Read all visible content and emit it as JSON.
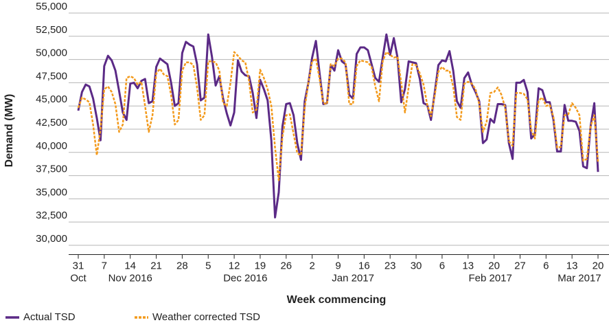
{
  "chart_data": {
    "type": "line",
    "y_label": "Demand (MW)",
    "x_label": "Week commencing",
    "ylim": [
      29000,
      55000
    ],
    "yticks": [
      {
        "value": 30000,
        "label": "30,000"
      },
      {
        "value": 32500,
        "label": "32,500"
      },
      {
        "value": 35000,
        "label": "35,000"
      },
      {
        "value": 37500,
        "label": "37,500"
      },
      {
        "value": 40000,
        "label": "40,000"
      },
      {
        "value": 42500,
        "label": "42,500"
      },
      {
        "value": 45000,
        "label": "45,000"
      },
      {
        "value": 47500,
        "label": "47,500"
      },
      {
        "value": 50000,
        "label": "50,000"
      },
      {
        "value": 52500,
        "label": "52,500"
      },
      {
        "value": 55000,
        "label": "55,000"
      }
    ],
    "grid": true,
    "categories": [
      "31",
      null,
      null,
      null,
      null,
      null,
      null,
      "7",
      null,
      null,
      null,
      null,
      null,
      null,
      "14",
      null,
      null,
      null,
      null,
      null,
      null,
      "21",
      null,
      null,
      null,
      null,
      null,
      null,
      "28",
      null,
      null,
      null,
      null,
      null,
      null,
      "5",
      null,
      null,
      null,
      null,
      null,
      null,
      "12",
      null,
      null,
      null,
      null,
      null,
      null,
      "19",
      null,
      null,
      null,
      null,
      null,
      null,
      "26",
      null,
      null,
      null,
      null,
      null,
      null,
      "2",
      null,
      null,
      null,
      null,
      null,
      null,
      "9",
      null,
      null,
      null,
      null,
      null,
      null,
      "16",
      null,
      null,
      null,
      null,
      null,
      null,
      "23",
      null,
      null,
      null,
      null,
      null,
      null,
      "30",
      null,
      null,
      null,
      null,
      null,
      null,
      "6",
      null,
      null,
      null,
      null,
      null,
      null,
      "13",
      null,
      null,
      null,
      null,
      null,
      null,
      "20",
      null,
      null,
      null,
      null,
      null,
      null,
      "27",
      null,
      null,
      null,
      null,
      null,
      null,
      "6",
      null,
      null,
      null,
      null,
      null,
      null,
      "13",
      null,
      null,
      null,
      null,
      null,
      null,
      "20"
    ],
    "month_labels": [
      "Oct",
      null,
      null,
      null,
      null,
      null,
      null,
      null,
      null,
      null,
      null,
      null,
      null,
      null,
      "Nov 2016",
      null,
      null,
      null,
      null,
      null,
      null,
      null,
      null,
      null,
      null,
      null,
      null,
      null,
      null,
      null,
      null,
      null,
      null,
      null,
      null,
      null,
      null,
      null,
      null,
      null,
      null,
      null,
      null,
      null,
      null,
      "Dec 2016",
      null,
      null,
      null,
      null,
      null,
      null,
      null,
      null,
      null,
      null,
      null,
      null,
      null,
      null,
      null,
      null,
      null,
      null,
      null,
      null,
      null,
      null,
      null,
      null,
      null,
      null,
      null,
      null,
      "Jan 2017",
      null,
      null,
      null,
      null,
      null,
      null,
      null,
      null,
      null,
      null,
      null,
      null,
      null,
      null,
      null,
      null,
      null,
      null,
      null,
      null,
      null,
      null,
      null,
      null,
      null,
      null,
      null,
      null,
      null,
      null,
      null,
      null,
      null,
      null,
      null,
      null,
      "Feb 2017",
      null,
      null,
      null,
      null,
      null,
      null,
      null,
      null,
      null,
      null,
      null,
      null,
      null,
      null,
      null,
      null,
      null,
      null,
      null,
      null,
      null,
      null,
      null,
      "Mar 2017",
      null,
      null,
      null,
      null,
      null,
      null
    ],
    "series": [
      {
        "name": "Actual TSD",
        "color": "#5b2a86",
        "style": "solid",
        "values": [
          44500,
          46500,
          47300,
          47100,
          45800,
          43700,
          41300,
          49300,
          50400,
          49900,
          48800,
          46600,
          44300,
          43500,
          47400,
          47500,
          46900,
          47700,
          47900,
          45300,
          45500,
          49200,
          50100,
          49800,
          49500,
          47500,
          45000,
          45300,
          50700,
          51900,
          51600,
          51400,
          49500,
          45600,
          45900,
          52700,
          50300,
          47200,
          48200,
          45800,
          44200,
          42900,
          44300,
          49900,
          48700,
          48300,
          48200,
          46400,
          43700,
          47800,
          46800,
          45600,
          41300,
          33000,
          35700,
          42800,
          45200,
          45300,
          44000,
          41000,
          39200,
          45500,
          47500,
          50200,
          52000,
          48500,
          45200,
          45300,
          49400,
          48800,
          51000,
          49800,
          49500,
          46200,
          45800,
          50600,
          51300,
          51300,
          51000,
          49500,
          48000,
          47600,
          50200,
          52700,
          50500,
          52300,
          50200,
          45400,
          46800,
          49800,
          49700,
          49600,
          47900,
          45300,
          45100,
          43500,
          46400,
          49400,
          49900,
          49800,
          50900,
          48800,
          45500,
          44800,
          48000,
          48600,
          47300,
          46500,
          45500,
          41000,
          41400,
          43600,
          43200,
          45200,
          45200,
          45100,
          41000,
          39300,
          47500,
          47500,
          47800,
          46500,
          41500,
          42000,
          46900,
          46700,
          45400,
          45400,
          43500,
          40100,
          40100,
          45100,
          43400,
          43400,
          43300,
          42300,
          38500,
          38300,
          42800,
          45300,
          37900
        ]
      },
      {
        "name": "Weather corrected TSD",
        "color": "#f39a1c",
        "style": "dashed",
        "values": [
          44800,
          45900,
          45700,
          45400,
          43000,
          39700,
          42500,
          46800,
          47100,
          46500,
          45200,
          42200,
          43000,
          48000,
          48200,
          48000,
          47300,
          47600,
          45000,
          42200,
          44000,
          48500,
          49000,
          48400,
          48200,
          46200,
          43000,
          43500,
          48800,
          49700,
          49700,
          49400,
          47000,
          43500,
          44000,
          49800,
          49800,
          49700,
          48800,
          45300,
          45000,
          47500,
          50800,
          50400,
          49900,
          49700,
          47700,
          44300,
          44600,
          48900,
          48000,
          46800,
          45000,
          40500,
          37000,
          41700,
          44000,
          44100,
          42000,
          39900,
          39700,
          44800,
          47500,
          49800,
          50100,
          47900,
          45300,
          45200,
          49500,
          49300,
          50100,
          50100,
          49700,
          45200,
          45200,
          49300,
          49900,
          49800,
          49700,
          49200,
          47100,
          45500,
          49800,
          50800,
          50500,
          50200,
          50300,
          47500,
          44300,
          47000,
          49500,
          49400,
          48500,
          47300,
          45100,
          43900,
          46100,
          48700,
          49200,
          48800,
          48800,
          47100,
          43800,
          43500,
          47400,
          47600,
          47400,
          46800,
          45200,
          42200,
          43300,
          46400,
          46500,
          47000,
          46200,
          44800,
          41200,
          40700,
          46400,
          46400,
          46300,
          45700,
          42400,
          41500,
          45600,
          45900,
          45000,
          45100,
          43800,
          40500,
          40600,
          44000,
          44100,
          45300,
          44800,
          44000,
          39100,
          39300,
          42800,
          44000,
          39000
        ]
      }
    ]
  }
}
